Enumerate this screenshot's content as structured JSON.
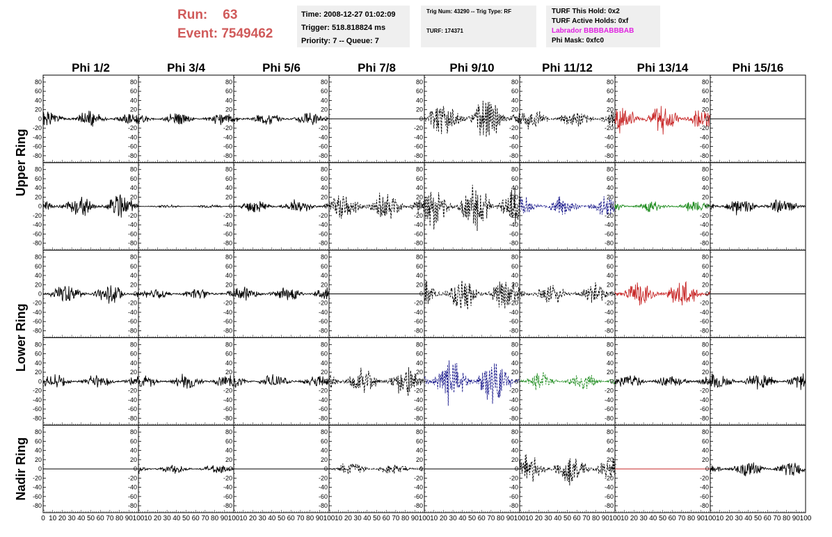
{
  "header": {
    "run_label": "Run:",
    "run_value": "63",
    "event_label": "Event:",
    "event_value": "7549462",
    "time_line": "Time: 2008-12-27 01:02:09",
    "trigger_line": "Trigger: 518.818824 ms",
    "priority_line": "Priority: 7 -- Queue: 7",
    "trig_line": "Trig Num: 43290 -- Trig Type: RF",
    "turf_line": "TURF: 174371",
    "turf_hold_line": "TURF This Hold: 0x2",
    "turf_active_line": "TURF Active Holds: 0xf",
    "labrador_line": "Labrador BBBBABBBAB",
    "phi_mask_line": "Phi Mask: 0xfc0"
  },
  "colors": {
    "run_text": "#d05a5a",
    "box_bg": "#efefef",
    "labrador": "#e020e0",
    "trace_black": "#000000",
    "trace_red": "#c82828",
    "trace_blue": "#1a1a8c",
    "trace_green": "#1e8c1e"
  },
  "chart_data": {
    "type": "line",
    "columns": [
      "Phi 1/2",
      "Phi 3/4",
      "Phi 5/6",
      "Phi 7/8",
      "Phi 9/10",
      "Phi 11/12",
      "Phi 13/14",
      "Phi 15/16"
    ],
    "row_groups": [
      {
        "label": "Upper Ring",
        "rows": [
          0,
          1
        ]
      },
      {
        "label": "Lower Ring",
        "rows": [
          2,
          3
        ]
      },
      {
        "label": "Nadir Ring",
        "rows": [
          4
        ]
      }
    ],
    "ylim": [
      -95,
      95
    ],
    "yticks": [
      -80,
      -60,
      -40,
      -20,
      0,
      20,
      40,
      60,
      80
    ],
    "xlim": [
      0,
      100
    ],
    "xticks": [
      0,
      10,
      20,
      30,
      40,
      50,
      60,
      70,
      80,
      90,
      100
    ],
    "panels": [
      [
        {
          "style": "solid",
          "color": "black",
          "amp": 14,
          "seed": 1
        },
        {
          "style": "solid",
          "color": "black",
          "amp": 11,
          "seed": 2
        },
        {
          "style": "solid",
          "color": "black",
          "amp": 12,
          "seed": 3
        },
        {
          "style": "flat",
          "color": "black",
          "amp": 0,
          "seed": 4
        },
        {
          "style": "dashed",
          "color": "black",
          "amp": 38,
          "seed": 5
        },
        {
          "style": "dashed",
          "color": "black",
          "amp": 18,
          "seed": 6
        },
        {
          "style": "solid",
          "color": "red",
          "amp": 26,
          "seed": 7
        },
        {
          "style": "flat",
          "color": "black",
          "amp": 0,
          "seed": 8
        }
      ],
      [
        {
          "style": "solid",
          "color": "black",
          "amp": 20,
          "seed": 9
        },
        {
          "style": "solid",
          "color": "black",
          "amp": 3,
          "seed": 10
        },
        {
          "style": "solid",
          "color": "black",
          "amp": 12,
          "seed": 11
        },
        {
          "style": "dashed",
          "color": "black",
          "amp": 28,
          "seed": 12
        },
        {
          "style": "dashed",
          "color": "black",
          "amp": 40,
          "seed": 13
        },
        {
          "style": "dashed",
          "color": "blue",
          "amp": 18,
          "seed": 14
        },
        {
          "style": "solid",
          "color": "green",
          "amp": 10,
          "seed": 15
        },
        {
          "style": "solid",
          "color": "black",
          "amp": 16,
          "seed": 16
        }
      ],
      [
        {
          "style": "solid",
          "color": "black",
          "amp": 18,
          "seed": 17
        },
        {
          "style": "solid",
          "color": "black",
          "amp": 10,
          "seed": 18
        },
        {
          "style": "solid",
          "color": "black",
          "amp": 14,
          "seed": 19
        },
        {
          "style": "flat",
          "color": "black",
          "amp": 0,
          "seed": 20
        },
        {
          "style": "dashed",
          "color": "black",
          "amp": 30,
          "seed": 21
        },
        {
          "style": "dashed",
          "color": "black",
          "amp": 20,
          "seed": 22
        },
        {
          "style": "solid",
          "color": "red",
          "amp": 26,
          "seed": 23
        },
        {
          "style": "flat",
          "color": "black",
          "amp": 0,
          "seed": 24
        }
      ],
      [
        {
          "style": "solid",
          "color": "black",
          "amp": 12,
          "seed": 25
        },
        {
          "style": "solid",
          "color": "black",
          "amp": 13,
          "seed": 26
        },
        {
          "style": "solid",
          "color": "black",
          "amp": 12,
          "seed": 27
        },
        {
          "style": "dashed",
          "color": "black",
          "amp": 26,
          "seed": 28
        },
        {
          "style": "dashed",
          "color": "blue",
          "amp": 42,
          "seed": 29
        },
        {
          "style": "dashed",
          "color": "green",
          "amp": 16,
          "seed": 30
        },
        {
          "style": "solid",
          "color": "black",
          "amp": 13,
          "seed": 31
        },
        {
          "style": "solid",
          "color": "black",
          "amp": 16,
          "seed": 32
        }
      ],
      [
        {
          "style": "flat",
          "color": "black",
          "amp": 0,
          "seed": 33
        },
        {
          "style": "solid",
          "color": "black",
          "amp": 8,
          "seed": 34
        },
        {
          "style": "flat",
          "color": "black",
          "amp": 0,
          "seed": 35
        },
        {
          "style": "dashed",
          "color": "black",
          "amp": 12,
          "seed": 36
        },
        {
          "style": "flat",
          "color": "black",
          "amp": 0,
          "seed": 37
        },
        {
          "style": "dashed",
          "color": "black",
          "amp": 28,
          "seed": 38
        },
        {
          "style": "flat",
          "color": "red",
          "amp": 0,
          "seed": 39
        },
        {
          "style": "solid",
          "color": "black",
          "amp": 14,
          "seed": 40
        }
      ]
    ]
  }
}
